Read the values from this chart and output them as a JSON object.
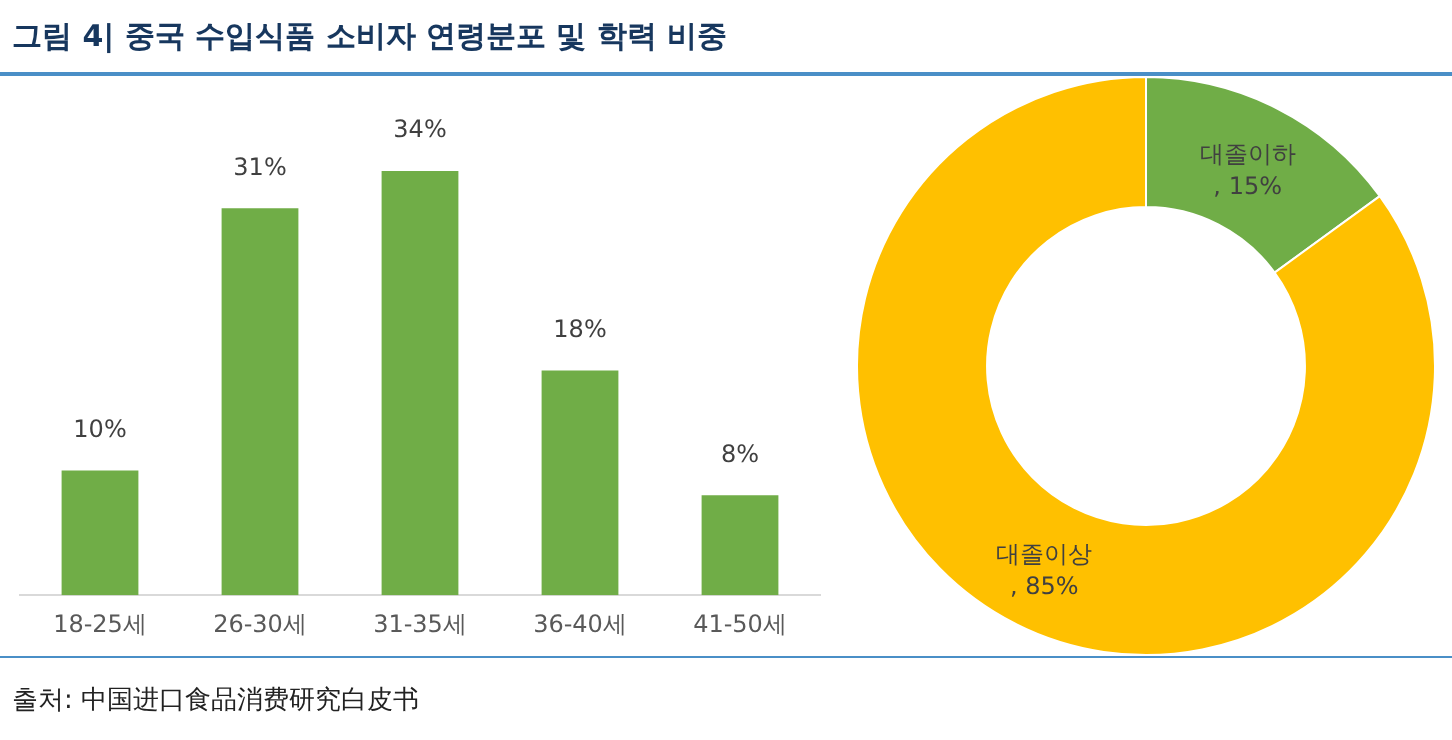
{
  "chart_data": [
    {
      "type": "bar",
      "title": "그림 4| 중국 수입식품 소비자 연령분포 및 학력 비중",
      "categories": [
        "18-25세",
        "26-30세",
        "31-35세",
        "36-40세",
        "41-50세"
      ],
      "values": [
        10,
        31,
        34,
        18,
        8
      ],
      "color": "#70ad47",
      "value_labels": [
        "10%",
        "31%",
        "34%",
        "18%",
        "8%"
      ],
      "annotations": [
        "출처: 中国进口食品消费研究白皮书"
      ]
    },
    {
      "type": "donut",
      "categories": [
        "대졸이하",
        "대졸이상"
      ],
      "values": [
        15,
        85
      ],
      "colors": [
        "#70ad47",
        "#ffc000"
      ],
      "value_labels": [
        ", 15%",
        ", 85%"
      ]
    }
  ]
}
